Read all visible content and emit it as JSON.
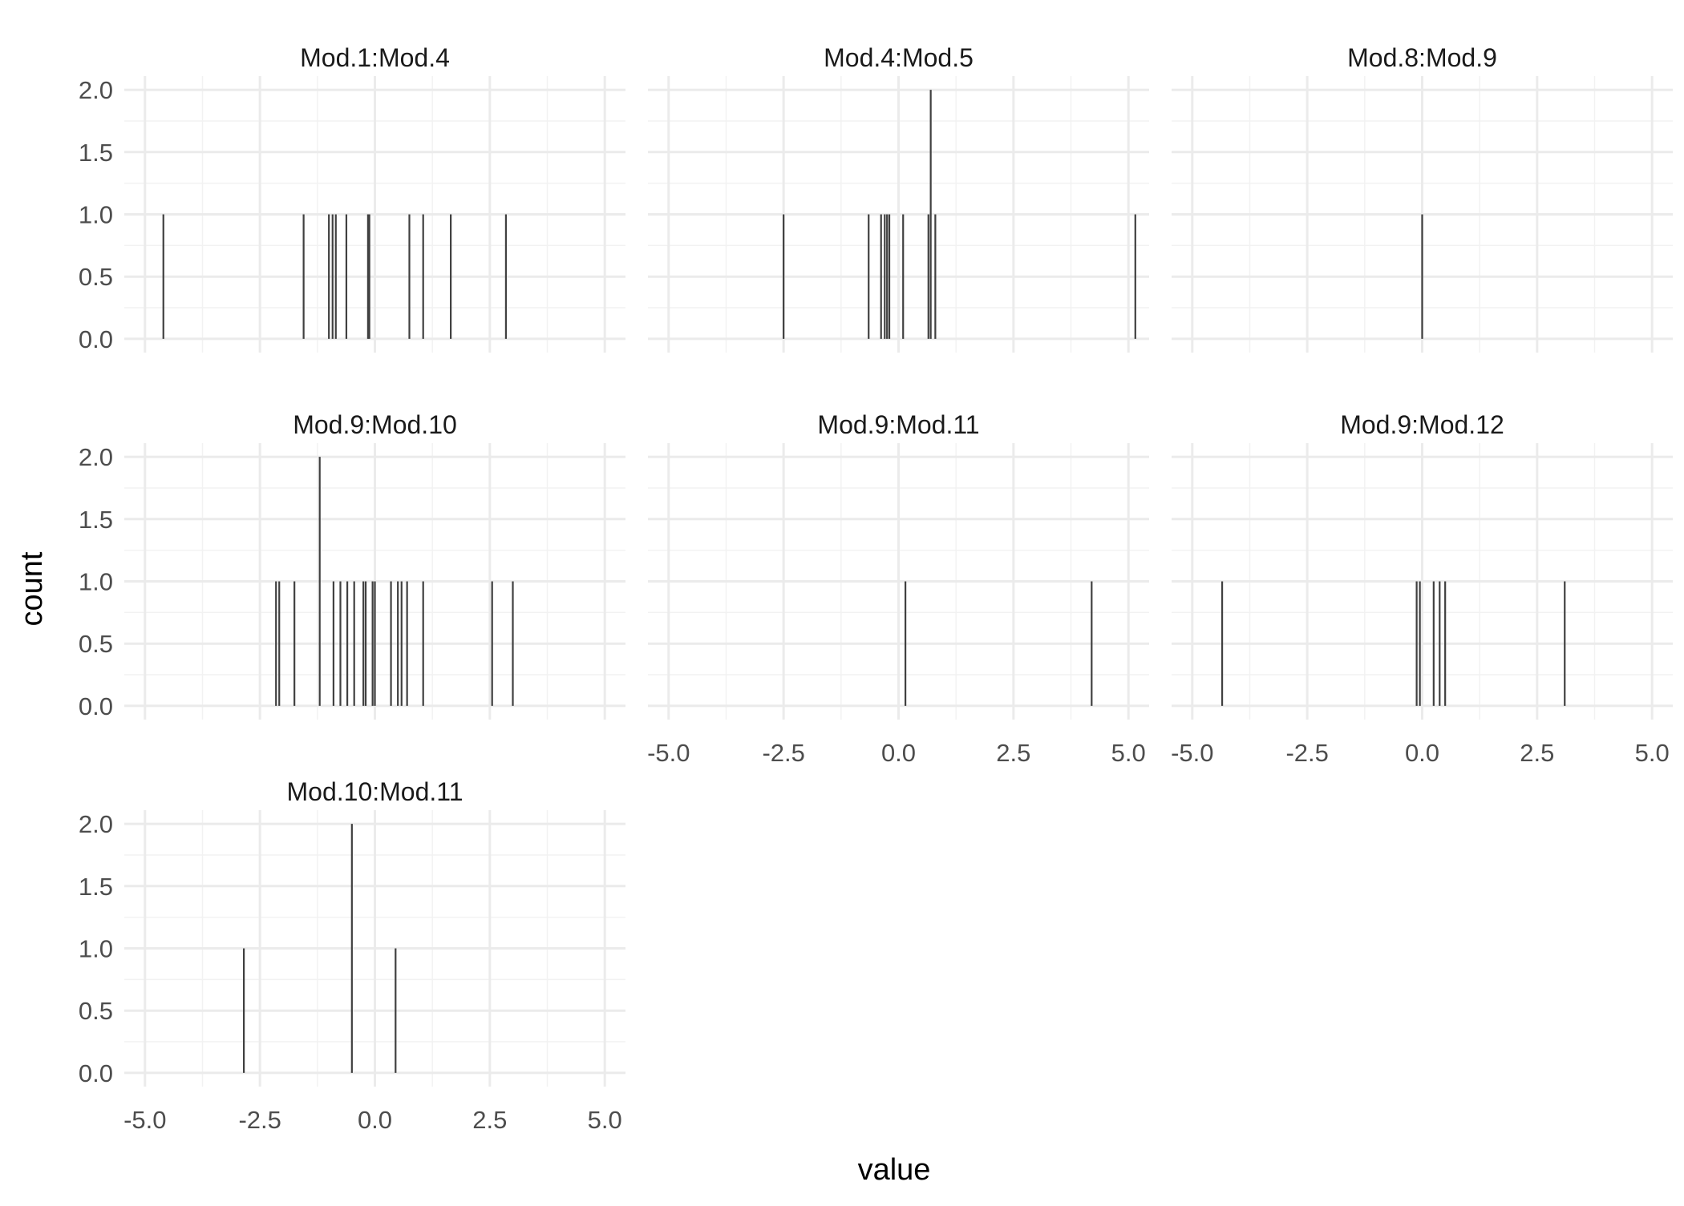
{
  "chart_data": {
    "type": "bar",
    "subtype": "faceted-histogram",
    "xlabel": "value",
    "ylabel": "count",
    "xlim": [
      -5.0,
      5.0
    ],
    "ylim": [
      0,
      2.0
    ],
    "x_ticks": [
      "-5.0",
      "-2.5",
      "0.0",
      "2.5",
      "5.0"
    ],
    "y_ticks": [
      "0.0",
      "0.5",
      "1.0",
      "1.5",
      "2.0"
    ],
    "grid": true,
    "layout": "3 columns x 3 rows",
    "bar_color": "#404040",
    "panel_grid_color": "#ebebeb",
    "panels": [
      {
        "name": "Mod.1:Mod.4",
        "bars": [
          {
            "x": -4.6,
            "count": 1
          },
          {
            "x": -1.55,
            "count": 1
          },
          {
            "x": -1.0,
            "count": 1
          },
          {
            "x": -0.92,
            "count": 1
          },
          {
            "x": -0.85,
            "count": 1
          },
          {
            "x": -0.62,
            "count": 1
          },
          {
            "x": -0.15,
            "count": 1
          },
          {
            "x": -0.12,
            "count": 1
          },
          {
            "x": 0.75,
            "count": 1
          },
          {
            "x": 1.05,
            "count": 1
          },
          {
            "x": 1.65,
            "count": 1
          },
          {
            "x": 2.85,
            "count": 1
          }
        ]
      },
      {
        "name": "Mod.4:Mod.5",
        "bars": [
          {
            "x": -2.5,
            "count": 1
          },
          {
            "x": -0.65,
            "count": 1
          },
          {
            "x": -0.38,
            "count": 1
          },
          {
            "x": -0.3,
            "count": 1
          },
          {
            "x": -0.25,
            "count": 1
          },
          {
            "x": -0.2,
            "count": 1
          },
          {
            "x": 0.1,
            "count": 1
          },
          {
            "x": 0.65,
            "count": 1
          },
          {
            "x": 0.7,
            "count": 2
          },
          {
            "x": 0.8,
            "count": 1
          },
          {
            "x": 5.15,
            "count": 1
          }
        ]
      },
      {
        "name": "Mod.8:Mod.9",
        "bars": [
          {
            "x": 0.0,
            "count": 1
          }
        ]
      },
      {
        "name": "Mod.9:Mod.10",
        "bars": [
          {
            "x": -2.15,
            "count": 1
          },
          {
            "x": -2.08,
            "count": 1
          },
          {
            "x": -1.75,
            "count": 1
          },
          {
            "x": -1.2,
            "count": 2
          },
          {
            "x": -0.9,
            "count": 1
          },
          {
            "x": -0.75,
            "count": 1
          },
          {
            "x": -0.6,
            "count": 1
          },
          {
            "x": -0.45,
            "count": 1
          },
          {
            "x": -0.25,
            "count": 1
          },
          {
            "x": -0.2,
            "count": 1
          },
          {
            "x": -0.05,
            "count": 1
          },
          {
            "x": 0.0,
            "count": 1
          },
          {
            "x": 0.35,
            "count": 1
          },
          {
            "x": 0.5,
            "count": 1
          },
          {
            "x": 0.58,
            "count": 1
          },
          {
            "x": 0.7,
            "count": 1
          },
          {
            "x": 1.05,
            "count": 1
          },
          {
            "x": 2.55,
            "count": 1
          },
          {
            "x": 3.0,
            "count": 1
          }
        ]
      },
      {
        "name": "Mod.9:Mod.11",
        "bars": [
          {
            "x": 0.15,
            "count": 1
          },
          {
            "x": 4.2,
            "count": 1
          }
        ]
      },
      {
        "name": "Mod.9:Mod.12",
        "bars": [
          {
            "x": -4.35,
            "count": 1
          },
          {
            "x": -0.12,
            "count": 1
          },
          {
            "x": -0.05,
            "count": 1
          },
          {
            "x": 0.25,
            "count": 1
          },
          {
            "x": 0.38,
            "count": 1
          },
          {
            "x": 0.5,
            "count": 1
          },
          {
            "x": 3.1,
            "count": 1
          }
        ]
      },
      {
        "name": "Mod.10:Mod.11",
        "bars": [
          {
            "x": -2.85,
            "count": 1
          },
          {
            "x": -0.5,
            "count": 2
          },
          {
            "x": 0.45,
            "count": 1
          }
        ]
      }
    ]
  }
}
